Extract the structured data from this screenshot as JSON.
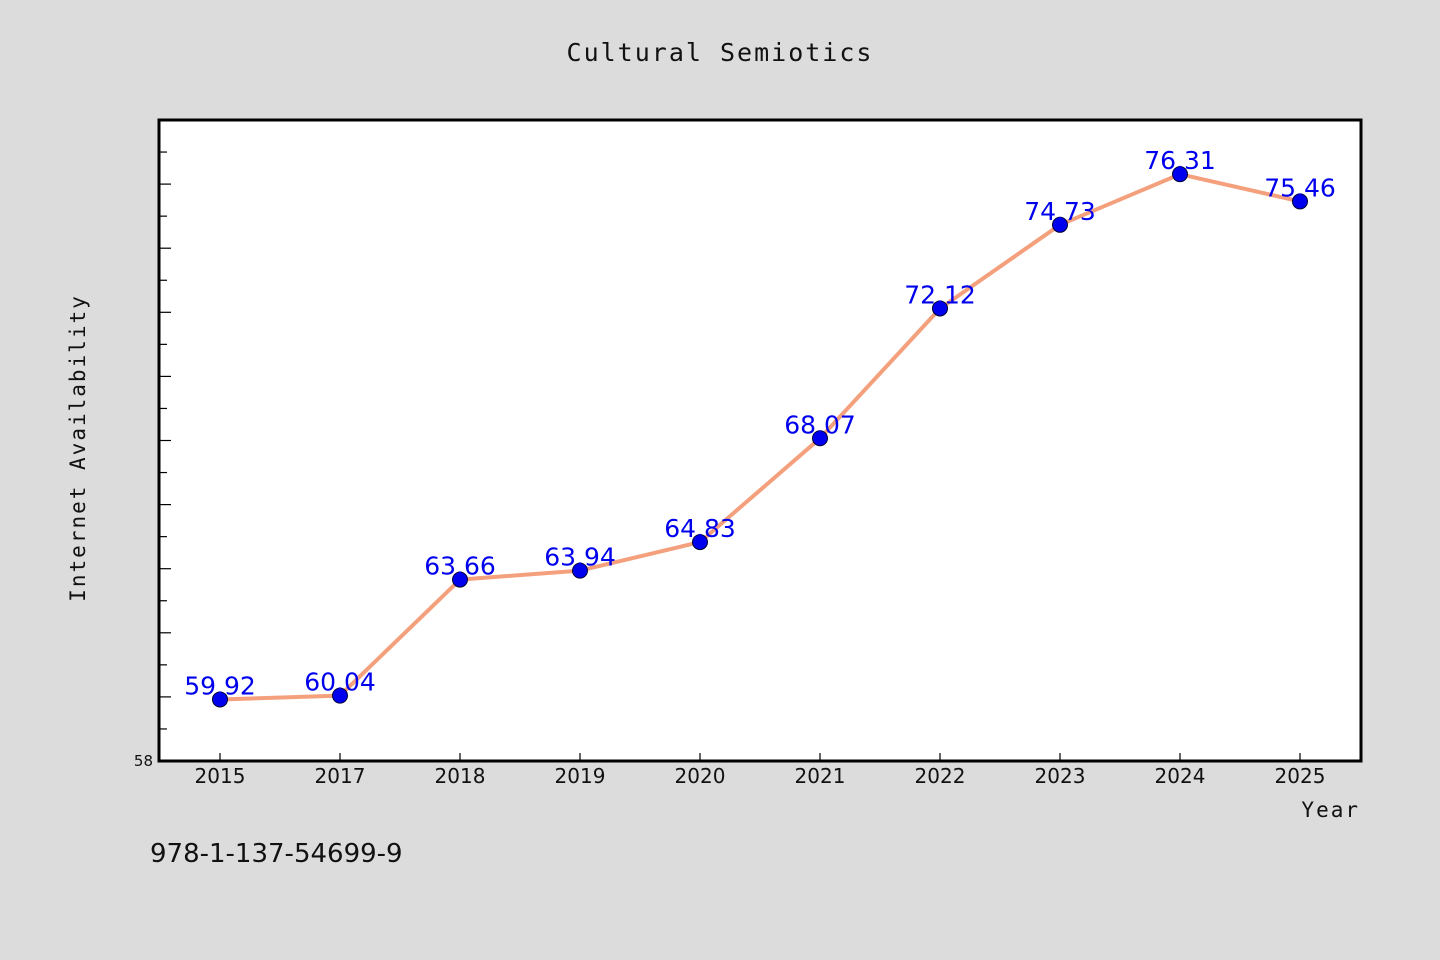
{
  "chart_data": {
    "type": "line",
    "title": "Cultural Semiotics",
    "xlabel": "Year",
    "ylabel": "Internet Availability",
    "categories": [
      "2015",
      "2017",
      "2018",
      "2019",
      "2020",
      "2021",
      "2022",
      "2023",
      "2024",
      "2025"
    ],
    "series": [
      {
        "values": [
          59.92,
          60.04,
          63.66,
          63.94,
          64.83,
          68.07,
          72.12,
          74.73,
          76.31,
          75.46
        ],
        "labels": [
          "59.92",
          "60.04",
          "63.66",
          "63.94",
          "64.83",
          "68.07",
          "72.12",
          "74.73",
          "76.31",
          "75.46"
        ],
        "line_color": "#f4a07c",
        "marker_color": "#0000ee"
      }
    ],
    "ylim": [
      58,
      78
    ],
    "ytick_labels": [
      "58"
    ],
    "grid": false,
    "colors": {
      "figure_background": "#dcdcdc",
      "plot_background": "#ffffff",
      "line": "#f4a07c",
      "marker": "#0000ee",
      "data_label": "#0000ee"
    }
  },
  "footer": {
    "code": "978-1-137-54699-9"
  }
}
